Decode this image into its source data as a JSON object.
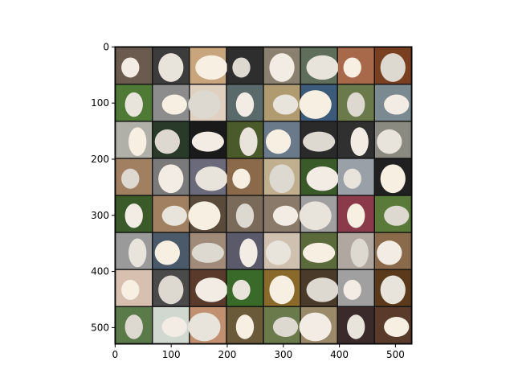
{
  "axes": {
    "xlim": [
      -0.5,
      529.5
    ],
    "ylim": [
      529.5,
      -0.5
    ],
    "xticks": [
      0,
      100,
      200,
      300,
      400,
      500
    ],
    "yticks": [
      0,
      100,
      200,
      300,
      400,
      500
    ]
  }
}
